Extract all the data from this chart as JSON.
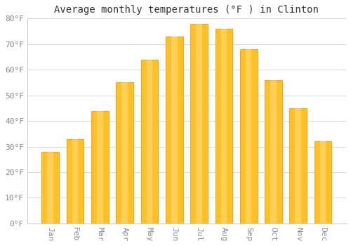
{
  "title": "Average monthly temperatures (°F ) in Clinton",
  "months": [
    "Jan",
    "Feb",
    "Mar",
    "Apr",
    "May",
    "Jun",
    "Jul",
    "Aug",
    "Sep",
    "Oct",
    "Nov",
    "Dec"
  ],
  "values": [
    28,
    33,
    44,
    55,
    64,
    73,
    78,
    76,
    68,
    56,
    45,
    32
  ],
  "bar_color_face": "#FFC125",
  "bar_color_edge": "#F5A623",
  "background_color": "#FFFFFF",
  "plot_bg_color": "#FFFFFF",
  "grid_color": "#D8D8D8",
  "ylim": [
    0,
    80
  ],
  "yticks": [
    0,
    10,
    20,
    30,
    40,
    50,
    60,
    70,
    80
  ],
  "ytick_labels": [
    "0°F",
    "10°F",
    "20°F",
    "30°F",
    "40°F",
    "50°F",
    "60°F",
    "70°F",
    "80°F"
  ],
  "title_fontsize": 10,
  "tick_fontsize": 8,
  "tick_color": "#888888",
  "font_family": "monospace",
  "bar_width": 0.7
}
